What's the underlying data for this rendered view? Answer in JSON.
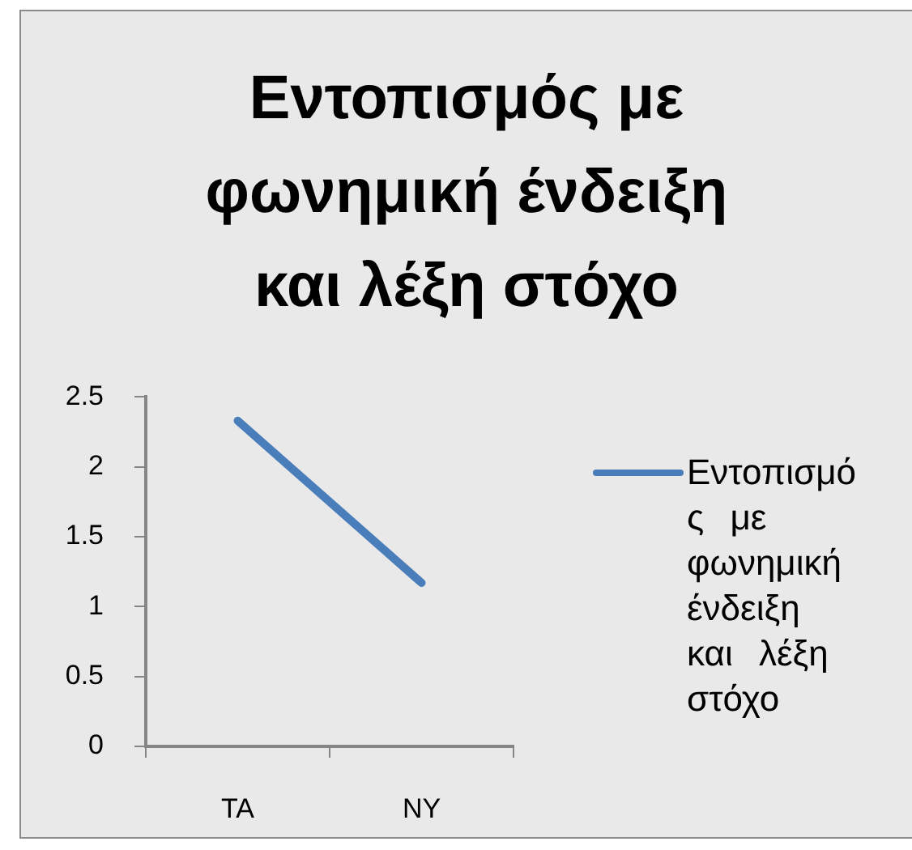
{
  "chart_data": {
    "type": "line",
    "title": "Εντοπισμός με φωνημική ένδειξη και λέξη στόχο",
    "categories": [
      "TA",
      "NY"
    ],
    "series": [
      {
        "name": "Εντοπισμός με φωνημική ένδειξη και λέξη στόχο",
        "color": "#4a7ebb",
        "values": [
          2.33,
          1.17
        ]
      }
    ],
    "ylim": [
      0,
      2.5
    ],
    "yticks": [
      0,
      0.5,
      1,
      1.5,
      2,
      2.5
    ],
    "grid": false,
    "legend": "right",
    "marker": "none",
    "line_style": "solid"
  }
}
